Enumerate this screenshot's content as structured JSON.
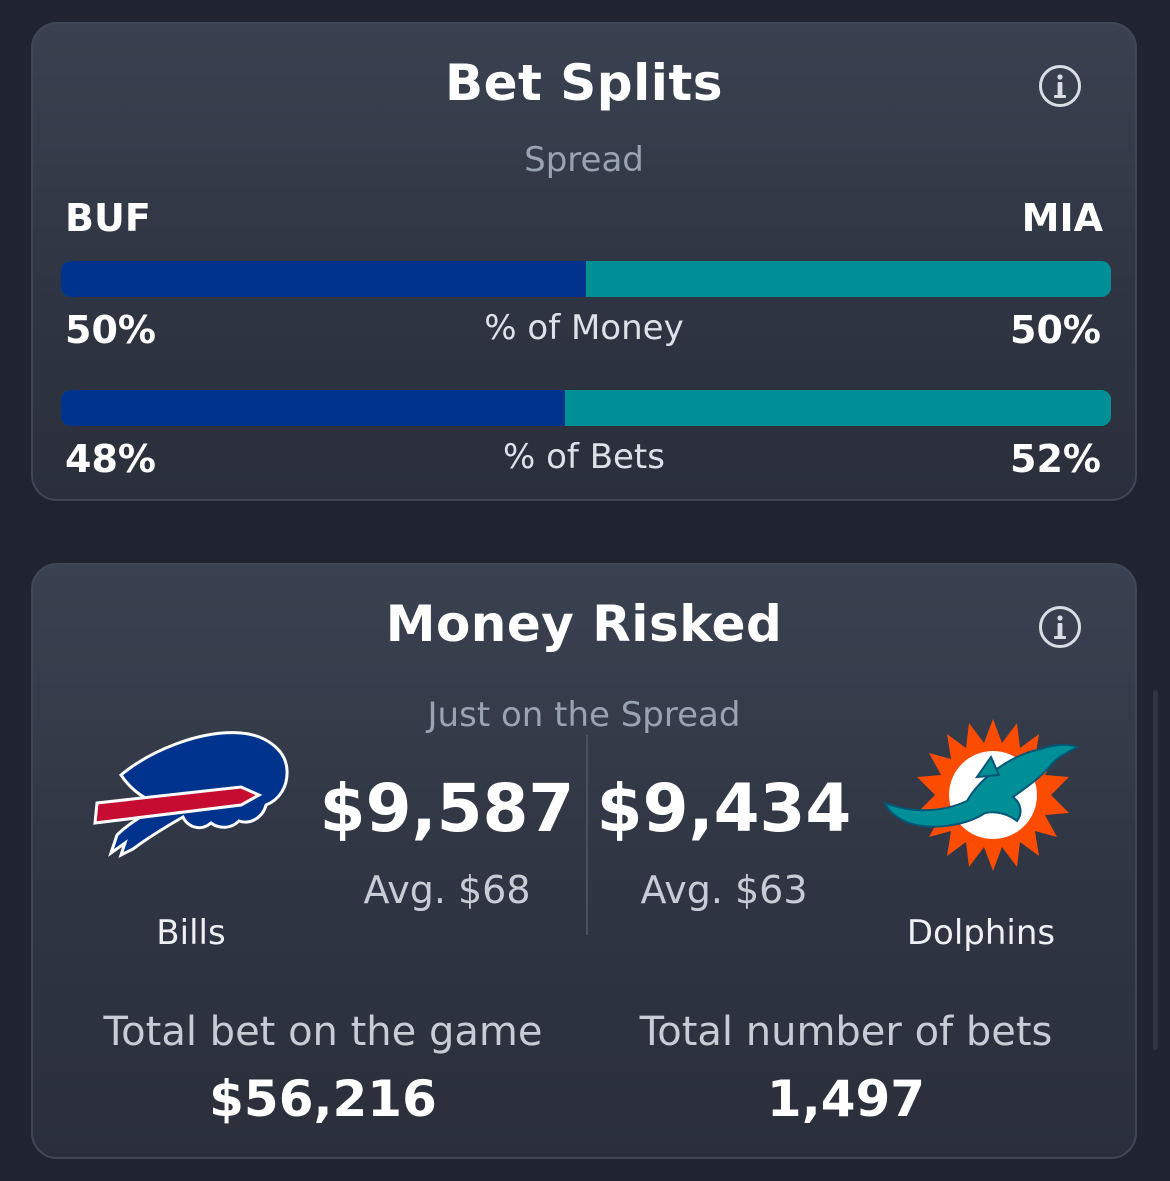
{
  "bet_splits": {
    "title": "Bet Splits",
    "subtitle": "Spread",
    "away_abbr": "BUF",
    "home_abbr": "MIA",
    "money": {
      "label": "% of Money",
      "away_pct_text": "50%",
      "home_pct_text": "50%",
      "away_fraction": 0.5
    },
    "bets": {
      "label": "% of Bets",
      "away_pct_text": "48%",
      "home_pct_text": "52%",
      "away_fraction": 0.48
    },
    "info_icon": "info-icon"
  },
  "money_risked": {
    "title": "Money Risked",
    "subtitle": "Just on the Spread",
    "info_icon": "info-icon",
    "away": {
      "name": "Bills",
      "amount": "$9,587",
      "avg": "Avg. $68",
      "logo": "bills-logo"
    },
    "home": {
      "name": "Dolphins",
      "amount": "$9,434",
      "avg": "Avg. $63",
      "logo": "dolphins-logo"
    },
    "total_bet_label": "Total bet on the game",
    "total_bet_value": "$56,216",
    "total_count_label": "Total number of bets",
    "total_count_value": "1,497"
  },
  "colors": {
    "bills_blue": "#00338d",
    "dolphins_aqua": "#008e97",
    "dolphins_orange": "#fc4c02",
    "bills_red": "#c60c30"
  }
}
